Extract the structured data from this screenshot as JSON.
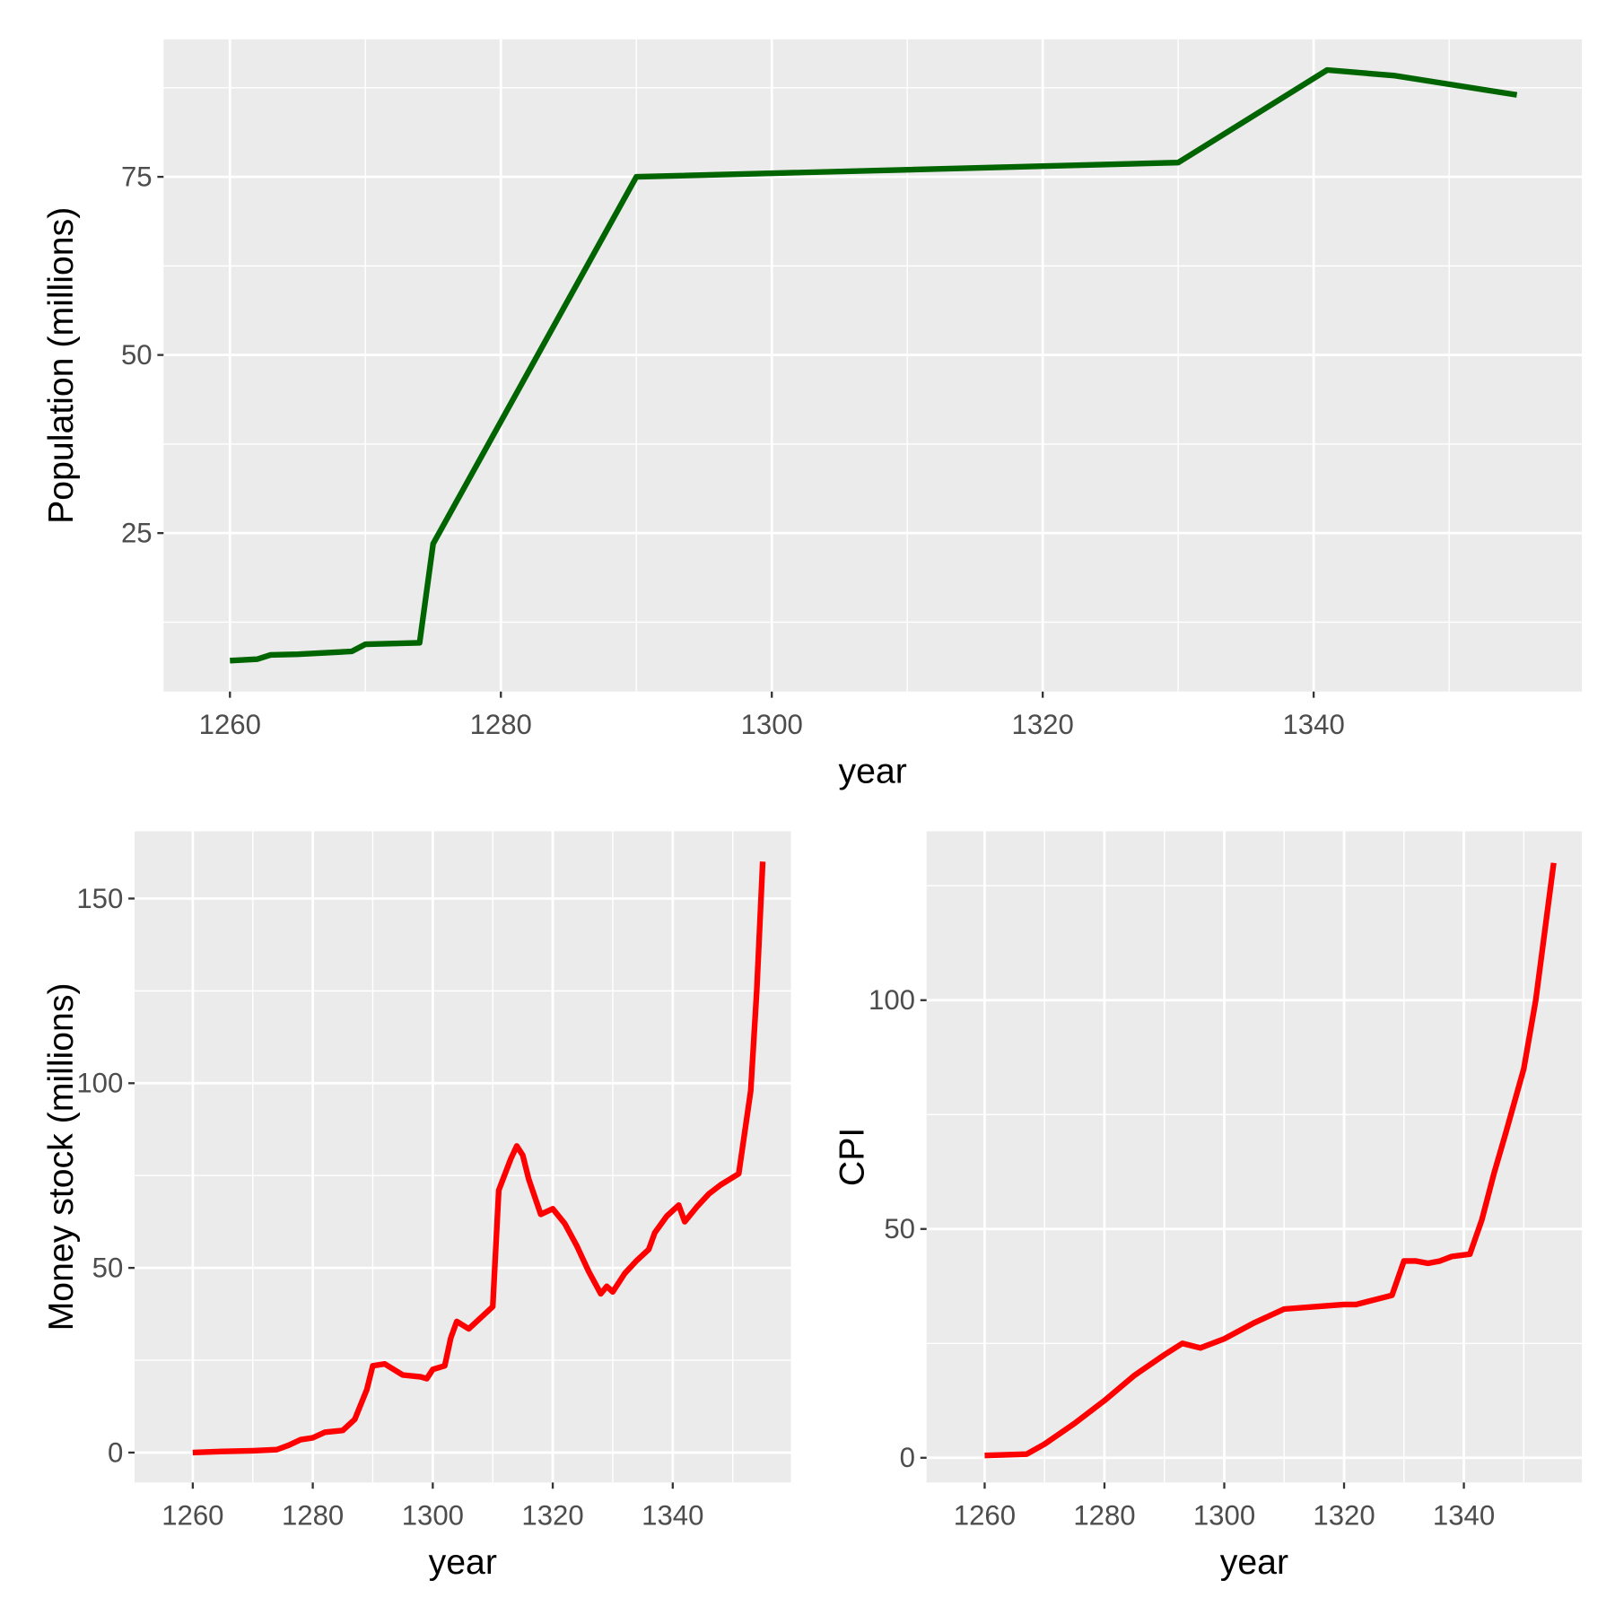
{
  "chart_data": [
    {
      "type": "line",
      "x_label": "year",
      "y_label": "Population (millions)",
      "color": "#006400",
      "x": [
        1260,
        1262,
        1263,
        1265,
        1269,
        1270,
        1274,
        1275,
        1290,
        1330,
        1341,
        1346,
        1355
      ],
      "values": [
        7.1,
        7.3,
        7.9,
        8.0,
        8.4,
        9.4,
        9.6,
        23.5,
        75,
        77,
        90,
        89.2,
        86.5
      ],
      "xlim": [
        1255.1,
        1359.8
      ],
      "ylim": [
        2.76,
        94.3
      ],
      "xticks": [
        1260,
        1280,
        1300,
        1320,
        1340
      ],
      "yticks": [
        25,
        50,
        75
      ],
      "grid": true
    },
    {
      "type": "line",
      "x_label": "year",
      "y_label": "Money stock (millions)",
      "color": "#ff0000",
      "x": [
        1260,
        1265,
        1270,
        1274,
        1276,
        1278,
        1280,
        1282,
        1285,
        1287,
        1289,
        1290,
        1292,
        1293,
        1295,
        1298,
        1299,
        1300,
        1302,
        1303,
        1304,
        1306,
        1308,
        1310,
        1311,
        1313,
        1314,
        1315,
        1316,
        1318,
        1320,
        1322,
        1324,
        1326,
        1328,
        1329,
        1330,
        1332,
        1334,
        1336,
        1337,
        1339,
        1341,
        1342,
        1344,
        1346,
        1348,
        1350,
        1351,
        1353,
        1354,
        1355
      ],
      "values": [
        0,
        0.3,
        0.5,
        0.8,
        2,
        3.5,
        4,
        5.5,
        6,
        9,
        17,
        23.5,
        24,
        23,
        21,
        20.5,
        20,
        22.5,
        23.5,
        31,
        35.5,
        33.5,
        36.5,
        39.5,
        71,
        79.5,
        83,
        80.5,
        74,
        64.5,
        66,
        62,
        56,
        49,
        43,
        45,
        43.5,
        48.5,
        52,
        55,
        59.5,
        64,
        67,
        62.5,
        66.5,
        70,
        72.5,
        74.5,
        75.5,
        98,
        125,
        160
      ],
      "xlim": [
        1250.3,
        1359.7
      ],
      "ylim": [
        -8.1,
        168.2
      ],
      "xticks": [
        1260,
        1280,
        1300,
        1320,
        1340
      ],
      "yticks": [
        0,
        50,
        100,
        150
      ],
      "grid": true
    },
    {
      "type": "line",
      "x_label": "year",
      "y_label": "CPI",
      "color": "#ff0000",
      "x": [
        1260,
        1267,
        1270,
        1275,
        1280,
        1285,
        1290,
        1293,
        1296,
        1300,
        1305,
        1310,
        1315,
        1320,
        1322,
        1325,
        1328,
        1330,
        1332,
        1334,
        1336,
        1338,
        1341,
        1343,
        1345,
        1347,
        1350,
        1352,
        1355
      ],
      "values": [
        0.5,
        0.8,
        3,
        7.5,
        12.5,
        18,
        22.5,
        25,
        24,
        26,
        29.5,
        32.5,
        33,
        33.5,
        33.5,
        34.5,
        35.5,
        43,
        43,
        42.5,
        43,
        44,
        44.5,
        52,
        62,
        71,
        85,
        100,
        130
      ],
      "xlim": [
        1250.3,
        1359.7
      ],
      "ylim": [
        -5.4,
        136.9
      ],
      "xticks": [
        1260,
        1280,
        1300,
        1320,
        1340
      ],
      "yticks": [
        0,
        50,
        100
      ],
      "grid": true
    }
  ]
}
